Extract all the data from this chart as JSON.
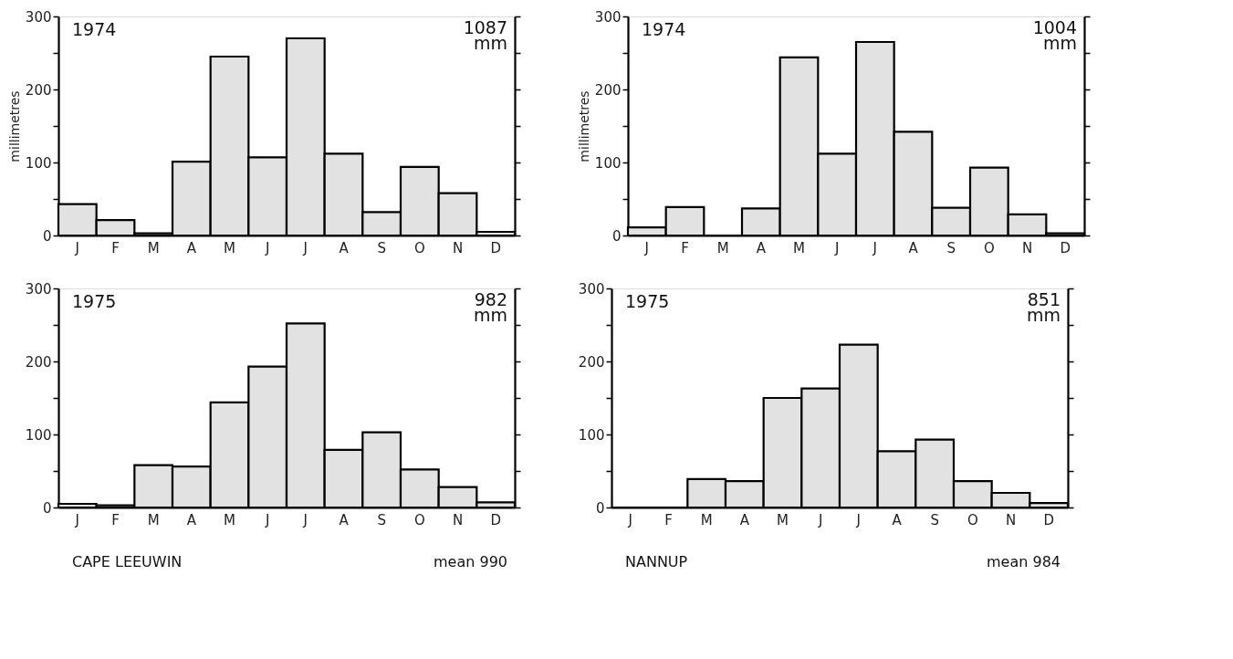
{
  "chart_data": [
    {
      "type": "bar",
      "categories": [
        "J",
        "F",
        "M",
        "A",
        "M",
        "J",
        "J",
        "A",
        "S",
        "O",
        "N",
        "D"
      ],
      "values": [
        43,
        21,
        3,
        101,
        245,
        107,
        270,
        112,
        32,
        94,
        58,
        5
      ],
      "color": "#e2e2e2",
      "ylim": [
        0,
        300
      ],
      "yticks": [
        0,
        {
          "value": 50,
          "label": null
        },
        100,
        {
          "value": 150,
          "label": null
        },
        200,
        {
          "value": 250,
          "label": null
        },
        300
      ],
      "ylabel": "millimetres",
      "grid": false,
      "annotations": [
        "1974",
        "1087 mm"
      ]
    },
    {
      "type": "bar",
      "categories": [
        "J",
        "F",
        "M",
        "A",
        "M",
        "J",
        "J",
        "A",
        "S",
        "O",
        "N",
        "D"
      ],
      "values": [
        11,
        39,
        0,
        37,
        244,
        112,
        265,
        142,
        38,
        93,
        29,
        3
      ],
      "color": "#e2e2e2",
      "ylim": [
        0,
        300
      ],
      "yticks": [
        0,
        {
          "value": 50,
          "label": null
        },
        100,
        {
          "value": 150,
          "label": null
        },
        200,
        {
          "value": 250,
          "label": null
        },
        300
      ],
      "ylabel": "millimetres",
      "grid": false,
      "annotations": [
        "1974",
        "1004 mm"
      ]
    },
    {
      "type": "bar",
      "categories": [
        "J",
        "F",
        "M",
        "A",
        "M",
        "J",
        "J",
        "A",
        "S",
        "O",
        "N",
        "D"
      ],
      "values": [
        5,
        3,
        58,
        56,
        144,
        193,
        252,
        79,
        103,
        52,
        28,
        7
      ],
      "color": "#e2e2e2",
      "ylim": [
        0,
        300
      ],
      "yticks": [
        0,
        {
          "value": 50,
          "label": null
        },
        100,
        {
          "value": 150,
          "label": null
        },
        200,
        {
          "value": 250,
          "label": null
        },
        300
      ],
      "grid": false,
      "annotations": [
        "1975",
        "982 mm",
        "CAPE LEEUWIN",
        "mean 990"
      ]
    },
    {
      "type": "bar",
      "categories": [
        "J",
        "F",
        "M",
        "A",
        "M",
        "J",
        "J",
        "A",
        "S",
        "O",
        "N",
        "D"
      ],
      "values": [
        0,
        0,
        39,
        36,
        150,
        163,
        223,
        77,
        93,
        36,
        20,
        6
      ],
      "color": "#e2e2e2",
      "ylim": [
        0,
        300
      ],
      "yticks": [
        0,
        {
          "value": 50,
          "label": null
        },
        100,
        {
          "value": 150,
          "label": null
        },
        200,
        {
          "value": 250,
          "label": null
        },
        300
      ],
      "grid": false,
      "annotations": [
        "1975",
        "851 mm",
        "NANNUP",
        "mean 984"
      ]
    }
  ]
}
